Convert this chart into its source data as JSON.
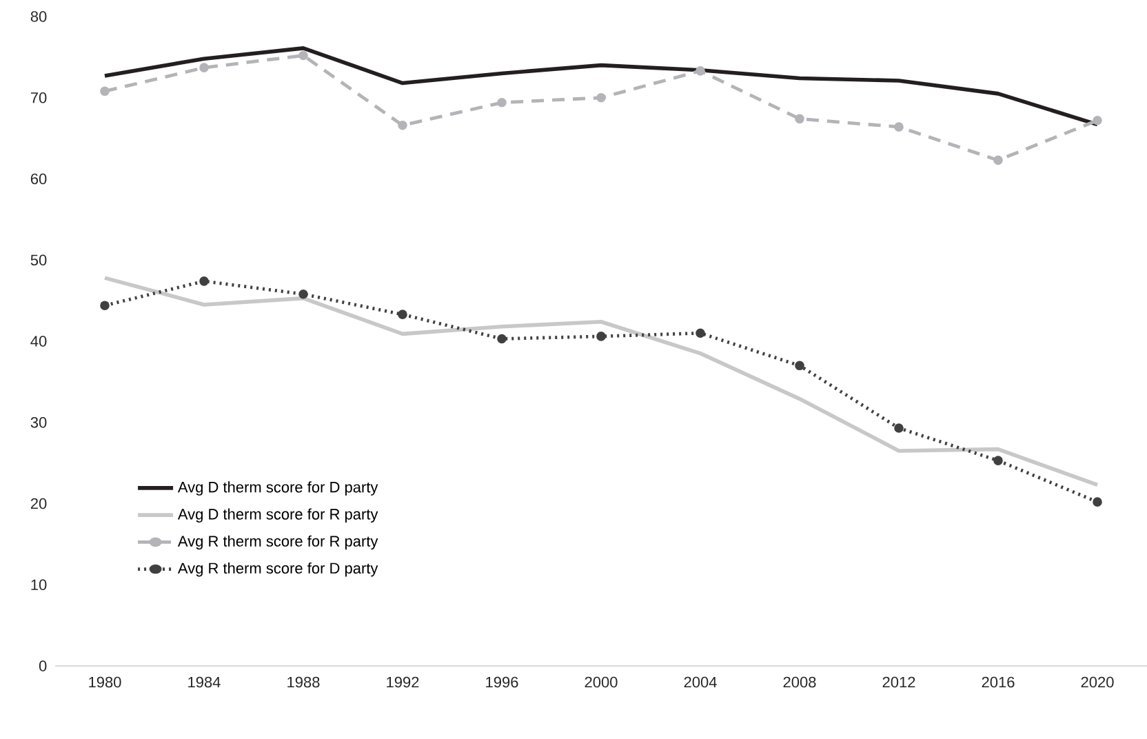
{
  "chart_data": {
    "type": "line",
    "categories": [
      "1980",
      "1984",
      "1988",
      "1992",
      "1996",
      "2000",
      "2004",
      "2008",
      "2012",
      "2016",
      "2020"
    ],
    "series": [
      {
        "name": "Avg D therm score for D party",
        "color": "#231f20",
        "line_style": "solid",
        "marker": "none",
        "values": [
          72.7,
          74.8,
          76.1,
          71.8,
          73.0,
          74.0,
          73.4,
          72.4,
          72.1,
          70.5,
          66.7
        ]
      },
      {
        "name": "Avg D therm score for R party",
        "color": "#c8c8c8",
        "line_style": "solid",
        "marker": "none",
        "values": [
          47.8,
          44.5,
          45.3,
          40.9,
          41.8,
          42.4,
          38.5,
          32.9,
          26.5,
          26.7,
          22.3
        ]
      },
      {
        "name": "Avg R therm score for R party",
        "color": "#b4b4b8",
        "line_style": "dashed",
        "marker": "circle",
        "values": [
          70.8,
          73.7,
          75.2,
          66.6,
          69.4,
          70.0,
          73.3,
          67.4,
          66.4,
          62.3,
          67.2
        ]
      },
      {
        "name": "Avg R therm score for D party",
        "color": "#404040",
        "line_style": "dotted",
        "marker": "circle",
        "values": [
          44.4,
          47.4,
          45.8,
          43.3,
          40.3,
          40.6,
          41.0,
          37.0,
          29.3,
          25.3,
          20.2
        ]
      }
    ],
    "ylim": [
      0,
      80
    ],
    "yticks": [
      0,
      10,
      20,
      30,
      40,
      50,
      60,
      70,
      80
    ],
    "grid": false,
    "legend": "bottom left"
  }
}
